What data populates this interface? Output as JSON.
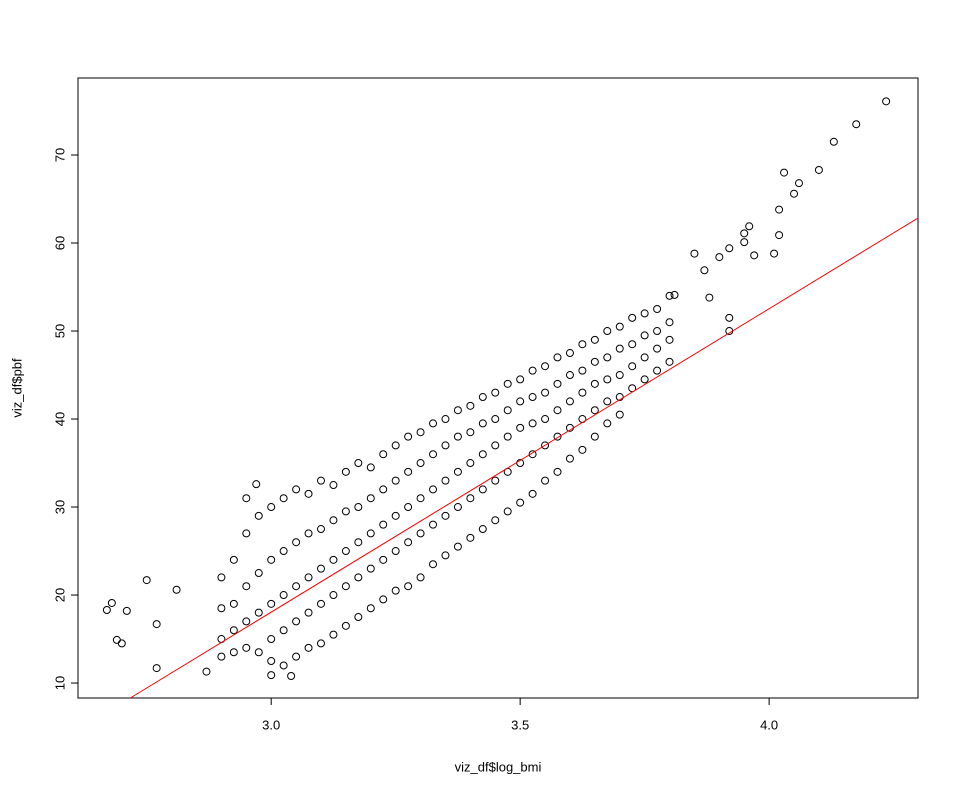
{
  "chart_data": {
    "type": "scatter",
    "x_label": "viz_df$log_bmi",
    "y_label": "viz_df$pbf",
    "xlim": [
      2.612,
      4.299
    ],
    "ylim": [
      8.3,
      78.75
    ],
    "xticks": [
      {
        "value": 3,
        "label": "3.0"
      },
      {
        "value": 3.5,
        "label": "3.5"
      },
      {
        "value": 4,
        "label": "4.0"
      }
    ],
    "yticks": [
      10,
      20,
      30,
      40,
      50,
      60,
      70
    ],
    "series": [
      {
        "kind": "points",
        "color": "#000000",
        "x": [
          2.9,
          2.9,
          2.9,
          2.9,
          2.925,
          2.925,
          2.925,
          2.925,
          2.95,
          2.95,
          2.95,
          2.95,
          2.975,
          2.975,
          2.975,
          2.975,
          3.0,
          3.0,
          3.0,
          3.0,
          3.0,
          3.025,
          3.025,
          3.025,
          3.025,
          3.025,
          3.05,
          3.05,
          3.05,
          3.05,
          3.05,
          3.075,
          3.075,
          3.075,
          3.075,
          3.075,
          3.1,
          3.1,
          3.1,
          3.1,
          3.1,
          3.125,
          3.125,
          3.125,
          3.125,
          3.125,
          3.15,
          3.15,
          3.15,
          3.15,
          3.15,
          3.175,
          3.175,
          3.175,
          3.175,
          3.175,
          3.2,
          3.2,
          3.2,
          3.2,
          3.2,
          3.225,
          3.225,
          3.225,
          3.225,
          3.225,
          3.25,
          3.25,
          3.25,
          3.25,
          3.25,
          3.275,
          3.275,
          3.275,
          3.275,
          3.275,
          3.3,
          3.3,
          3.3,
          3.3,
          3.3,
          3.325,
          3.325,
          3.325,
          3.325,
          3.325,
          3.35,
          3.35,
          3.35,
          3.35,
          3.35,
          3.375,
          3.375,
          3.375,
          3.375,
          3.375,
          3.4,
          3.4,
          3.4,
          3.4,
          3.4,
          3.425,
          3.425,
          3.425,
          3.425,
          3.425,
          3.45,
          3.45,
          3.45,
          3.45,
          3.45,
          3.475,
          3.475,
          3.475,
          3.475,
          3.475,
          3.5,
          3.5,
          3.5,
          3.5,
          3.5,
          3.525,
          3.525,
          3.525,
          3.525,
          3.525,
          3.55,
          3.55,
          3.55,
          3.55,
          3.55,
          3.575,
          3.575,
          3.575,
          3.575,
          3.575,
          3.6,
          3.6,
          3.6,
          3.6,
          3.6,
          3.625,
          3.625,
          3.625,
          3.625,
          3.625,
          3.65,
          3.65,
          3.65,
          3.65,
          3.65,
          3.675,
          3.675,
          3.675,
          3.675,
          3.675,
          3.7,
          3.7,
          3.7,
          3.7,
          3.7,
          3.725,
          3.725,
          3.725,
          3.725,
          3.75,
          3.75,
          3.75,
          3.75,
          3.775,
          3.775,
          3.775,
          3.775,
          3.8,
          3.8,
          3.8,
          3.8,
          4.235,
          4.175,
          4.13,
          4.1,
          4.06,
          4.05,
          4.03,
          4.02,
          4.02,
          4.01,
          3.96,
          3.95,
          3.95,
          3.97,
          3.92,
          3.92,
          3.92,
          3.9,
          3.87,
          3.85,
          3.88,
          3.81,
          2.68,
          2.67,
          2.69,
          2.7,
          2.71,
          2.75,
          2.77,
          2.87,
          2.77,
          2.81,
          2.97,
          2.95,
          3.0,
          3.04
        ],
        "values": [
          22.0,
          18.5,
          15.0,
          13.0,
          24.0,
          19.0,
          16.0,
          13.5,
          27.0,
          21.0,
          17.0,
          14.0,
          29.0,
          22.5,
          18.0,
          13.5,
          30.0,
          24.0,
          19.0,
          15.0,
          12.5,
          31.0,
          25.0,
          20.0,
          16.0,
          12.0,
          32.0,
          26.0,
          21.0,
          17.0,
          13.0,
          31.5,
          27.0,
          22.0,
          18.0,
          14.0,
          33.0,
          27.5,
          23.0,
          19.0,
          14.5,
          32.5,
          28.5,
          24.0,
          20.0,
          15.5,
          34.0,
          29.5,
          25.0,
          21.0,
          16.5,
          35.0,
          30.0,
          26.0,
          22.0,
          17.5,
          34.5,
          31.0,
          27.0,
          23.0,
          18.5,
          36.0,
          32.0,
          28.0,
          24.0,
          19.5,
          37.0,
          33.0,
          29.0,
          25.0,
          20.5,
          38.0,
          34.0,
          30.0,
          26.0,
          21.0,
          38.5,
          35.0,
          31.0,
          27.0,
          22.0,
          39.5,
          36.0,
          32.0,
          28.0,
          23.5,
          40.0,
          37.0,
          33.0,
          29.0,
          24.5,
          41.0,
          38.0,
          34.0,
          30.0,
          25.5,
          41.5,
          38.5,
          35.0,
          31.0,
          26.5,
          42.5,
          39.5,
          36.0,
          32.0,
          27.5,
          43.0,
          40.0,
          37.0,
          33.0,
          28.5,
          44.0,
          41.0,
          38.0,
          34.0,
          29.5,
          44.5,
          42.0,
          39.0,
          35.0,
          30.5,
          45.5,
          42.5,
          39.5,
          36.0,
          31.5,
          46.0,
          43.0,
          40.0,
          37.0,
          33.0,
          47.0,
          44.0,
          41.0,
          38.0,
          34.0,
          47.5,
          45.0,
          42.0,
          39.0,
          35.5,
          48.5,
          45.5,
          43.0,
          40.0,
          36.5,
          49.0,
          46.5,
          44.0,
          41.0,
          38.0,
          50.0,
          47.0,
          44.5,
          42.0,
          39.5,
          50.5,
          48.0,
          45.0,
          42.5,
          40.5,
          51.5,
          48.5,
          46.0,
          43.5,
          52.0,
          49.5,
          47.0,
          44.5,
          52.5,
          50.0,
          48.0,
          45.5,
          54.0,
          51.0,
          49.0,
          46.5,
          76.1,
          73.5,
          71.5,
          68.3,
          66.8,
          65.6,
          68.0,
          63.8,
          60.9,
          58.8,
          61.9,
          61.1,
          60.1,
          58.6,
          59.4,
          51.5,
          50.0,
          58.4,
          56.9,
          58.8,
          53.8,
          54.1,
          19.1,
          18.3,
          14.9,
          14.5,
          18.2,
          21.7,
          11.7,
          11.3,
          16.7,
          20.6,
          32.6,
          31.0,
          10.9,
          10.8
        ]
      },
      {
        "kind": "line",
        "color": "#ff0000",
        "x": [
          2.717,
          4.299
        ],
        "values": [
          8.3,
          62.84
        ]
      }
    ]
  }
}
